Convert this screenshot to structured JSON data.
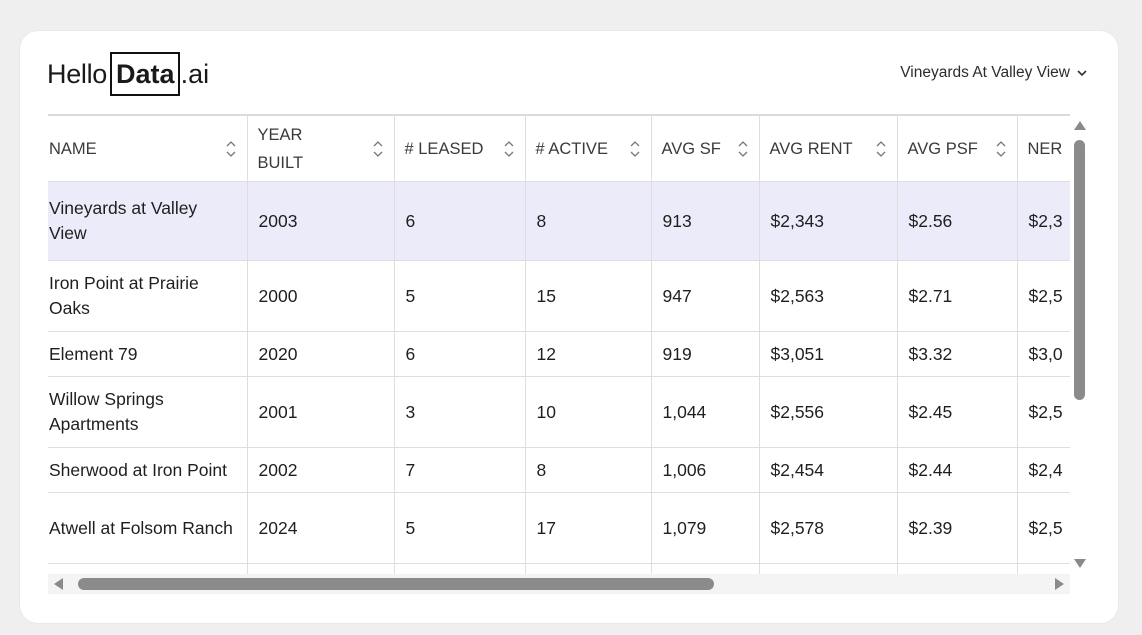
{
  "brand": {
    "hello": "Hello",
    "data": "Data",
    "ai": ".ai"
  },
  "property_selector": {
    "label": "Vineyards At Valley View",
    "icon": "chevron-down-icon"
  },
  "table": {
    "headers": [
      "NAME",
      "YEAR BUILT",
      "# LEASED",
      "# ACTIVE",
      "AVG SF",
      "AVG RENT",
      "AVG PSF",
      "NER"
    ],
    "rows": [
      {
        "name": "Vineyards at Valley View",
        "year": "2003",
        "leased": "6",
        "active": "8",
        "sf": "913",
        "rent": "$2,343",
        "psf": "$2.56",
        "ner": "$2,3"
      },
      {
        "name": "Iron Point at Prairie Oaks",
        "year": "2000",
        "leased": "5",
        "active": "15",
        "sf": "947",
        "rent": "$2,563",
        "psf": "$2.71",
        "ner": "$2,5"
      },
      {
        "name": "Element 79",
        "year": "2020",
        "leased": "6",
        "active": "12",
        "sf": "919",
        "rent": "$3,051",
        "psf": "$3.32",
        "ner": "$3,0"
      },
      {
        "name": "Willow Springs Apartments",
        "year": "2001",
        "leased": "3",
        "active": "10",
        "sf": "1,044",
        "rent": "$2,556",
        "psf": "$2.45",
        "ner": "$2,5"
      },
      {
        "name": "Sherwood at Iron Point",
        "year": "2002",
        "leased": "7",
        "active": "8",
        "sf": "1,006",
        "rent": "$2,454",
        "psf": "$2.44",
        "ner": "$2,4"
      },
      {
        "name": "Atwell at Folsom Ranch",
        "year": "2024",
        "leased": "5",
        "active": "17",
        "sf": "1,079",
        "rent": "$2,578",
        "psf": "$2.39",
        "ner": "$2,5"
      }
    ],
    "selected_row": 0
  },
  "colors": {
    "selected_row_bg": "#ecebfa",
    "scrollbar": "#8b8b8b",
    "border": "#dedede"
  }
}
